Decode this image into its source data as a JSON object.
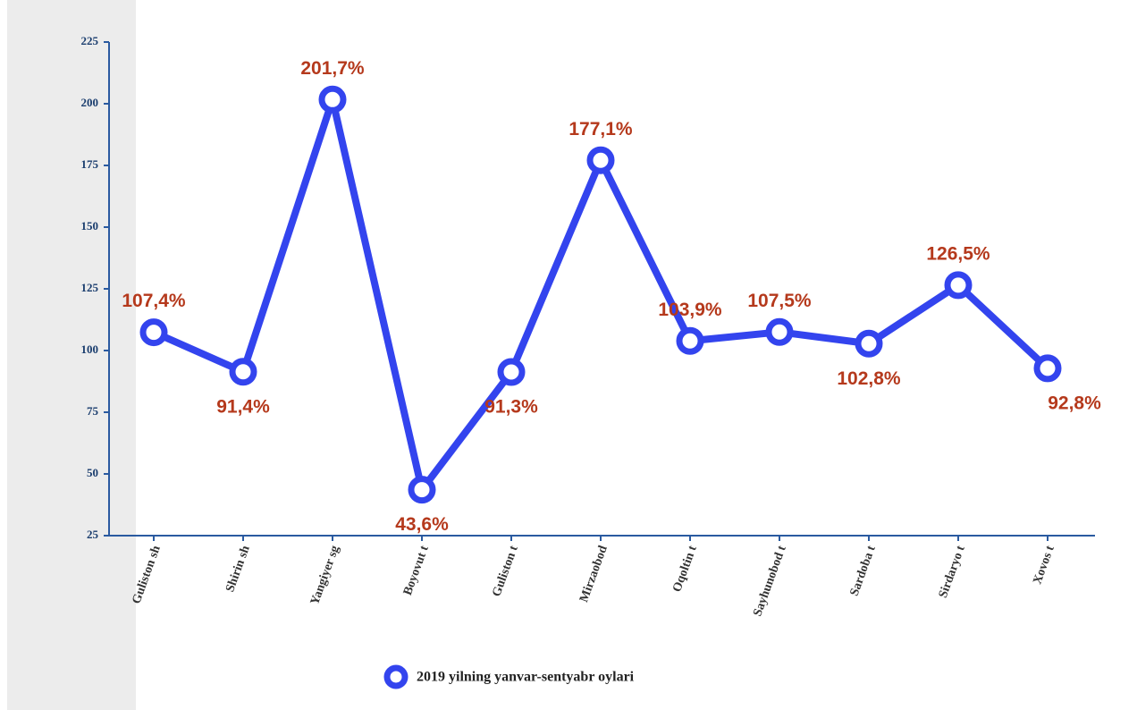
{
  "chart_data": {
    "type": "line",
    "categories": [
      "Guliston sh",
      "Shirin sh",
      "Yangiyer sg",
      "Boyovut t",
      "Guliston t",
      "Mirzaobod",
      "Oqoltin t",
      "Sayhunobod t",
      "Sardoba t",
      "Sirdaryo t",
      "Xovos t"
    ],
    "series": [
      {
        "name": "2019 yilning yanvar-sentyabr oylari",
        "color": "#3344ee",
        "values": [
          107.4,
          91.4,
          201.7,
          43.6,
          91.3,
          177.1,
          103.9,
          107.5,
          102.8,
          126.5,
          92.8
        ],
        "value_labels": [
          "107,4%",
          "91,4%",
          "201,7%",
          "43,6%",
          "91,3%",
          "177,1%",
          "103,9%",
          "107,5%",
          "102,8%",
          "126,5%",
          "92,8%"
        ]
      }
    ],
    "ylim": [
      25,
      225
    ],
    "yticks": [
      25,
      50,
      75,
      100,
      125,
      150,
      175,
      200,
      225
    ],
    "legend": "bottom"
  }
}
